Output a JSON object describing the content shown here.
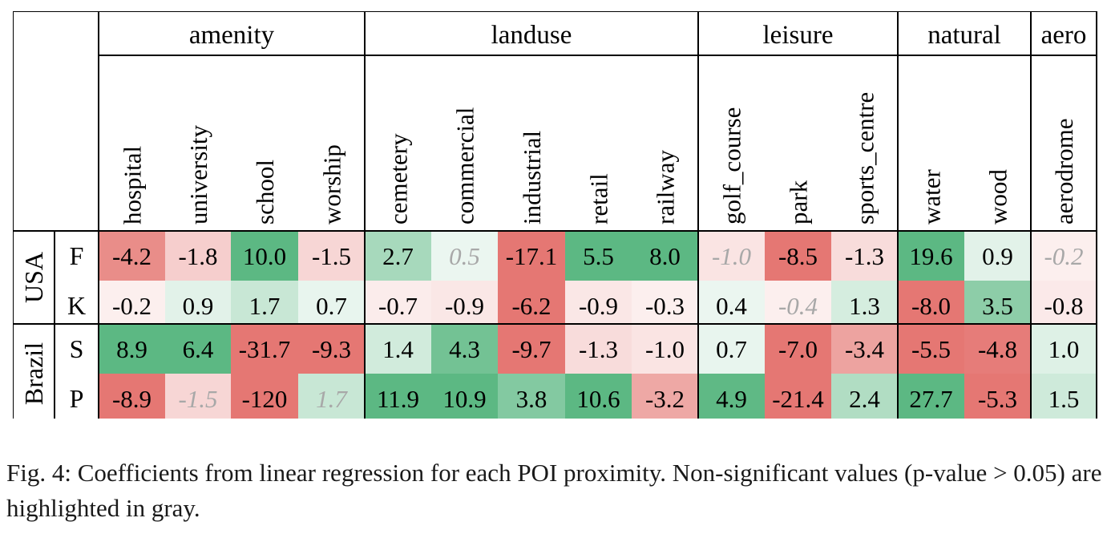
{
  "groups": [
    {
      "label": "amenity",
      "columns": [
        "hospital",
        "university",
        "school",
        "worship"
      ]
    },
    {
      "label": "landuse",
      "columns": [
        "cemetery",
        "commercial",
        "industrial",
        "retail",
        "railway"
      ]
    },
    {
      "label": "leisure",
      "columns": [
        "golf_course",
        "park",
        "sports_centre"
      ]
    },
    {
      "label": "natural",
      "columns": [
        "water",
        "wood"
      ]
    },
    {
      "label": "aero",
      "columns": [
        "aerodrome"
      ]
    }
  ],
  "row_groups": [
    {
      "label": "USA",
      "rows": [
        {
          "label": "F",
          "values": [
            -4.2,
            -1.8,
            10.0,
            -1.5,
            2.7,
            0.5,
            -17.1,
            5.5,
            8.0,
            -1.0,
            -8.5,
            -1.3,
            19.6,
            0.9,
            -0.2
          ],
          "text": [
            "-4.2",
            "-1.8",
            "10.0",
            "-1.5",
            "2.7",
            "0.5",
            "-17.1",
            "5.5",
            "8.0",
            "-1.0",
            "-8.5",
            "-1.3",
            "19.6",
            "0.9",
            "-0.2"
          ],
          "significant": [
            true,
            true,
            true,
            true,
            true,
            false,
            true,
            true,
            true,
            false,
            true,
            true,
            true,
            true,
            false
          ]
        },
        {
          "label": "K",
          "values": [
            -0.2,
            0.9,
            1.7,
            0.7,
            -0.7,
            -0.9,
            -6.2,
            -0.9,
            -0.3,
            0.4,
            -0.4,
            1.3,
            -8.0,
            3.5,
            -0.8
          ],
          "text": [
            "-0.2",
            "0.9",
            "1.7",
            "0.7",
            "-0.7",
            "-0.9",
            "-6.2",
            "-0.9",
            "-0.3",
            "0.4",
            "-0.4",
            "1.3",
            "-8.0",
            "3.5",
            "-0.8"
          ],
          "significant": [
            true,
            true,
            true,
            true,
            true,
            true,
            true,
            true,
            true,
            true,
            false,
            true,
            true,
            true,
            true
          ]
        }
      ]
    },
    {
      "label": "Brazil",
      "rows": [
        {
          "label": "S",
          "values": [
            8.9,
            6.4,
            -31.7,
            -9.3,
            1.4,
            4.3,
            -9.7,
            -1.3,
            -1.0,
            0.7,
            -7.0,
            -3.4,
            -5.5,
            -4.8,
            1.0
          ],
          "text": [
            "8.9",
            "6.4",
            "-31.7",
            "-9.3",
            "1.4",
            "4.3",
            "-9.7",
            "-1.3",
            "-1.0",
            "0.7",
            "-7.0",
            "-3.4",
            "-5.5",
            "-4.8",
            "1.0"
          ],
          "significant": [
            true,
            true,
            true,
            true,
            true,
            true,
            true,
            true,
            true,
            true,
            true,
            true,
            true,
            true,
            true
          ]
        },
        {
          "label": "P",
          "values": [
            -8.9,
            -1.5,
            -120,
            1.7,
            11.9,
            10.9,
            3.8,
            10.6,
            -3.2,
            4.9,
            -21.4,
            2.4,
            27.7,
            -5.3,
            1.5
          ],
          "text": [
            "-8.9",
            "-1.5",
            "-120",
            "1.7",
            "11.9",
            "10.9",
            "3.8",
            "10.6",
            "-3.2",
            "4.9",
            "-21.4",
            "2.4",
            "27.7",
            "-5.3",
            "1.5"
          ],
          "significant": [
            true,
            false,
            true,
            false,
            true,
            true,
            true,
            true,
            true,
            true,
            true,
            true,
            true,
            true,
            true
          ]
        }
      ]
    }
  ],
  "colors": {
    "positive_strong": "#5cb883",
    "negative_strong": "#e57773",
    "neutral": "#ffffff",
    "nonsignificant_text": "#a8a8a8",
    "grid": "#000000"
  },
  "caption": "Fig. 4: Coefficients from linear regression for each POI proximity. Non-significant values (p-value > 0.05) are highlighted in gray."
}
